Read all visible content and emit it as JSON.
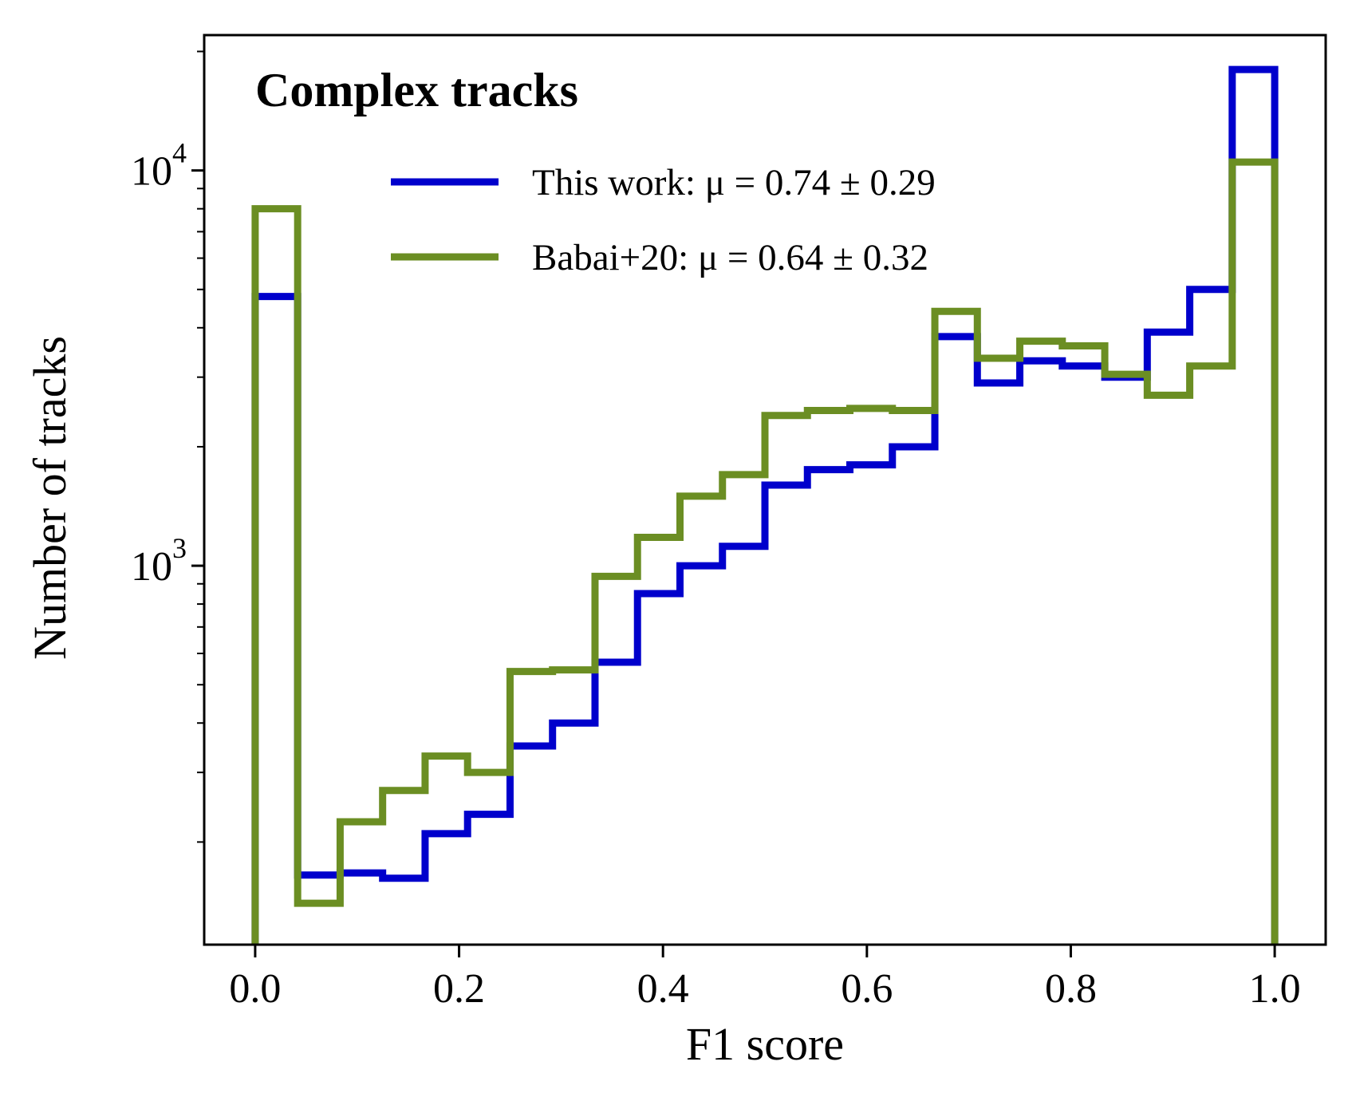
{
  "chart_data": {
    "type": "histogram-step",
    "title": "Complex tracks",
    "xlabel": "F1 score",
    "ylabel": "Number of tracks",
    "xscale": "linear",
    "yscale": "log",
    "xlim": [
      -0.05,
      1.05
    ],
    "ylim": [
      110,
      22000
    ],
    "xticks": [
      0.0,
      0.2,
      0.4,
      0.6,
      0.8,
      1.0
    ],
    "xtick_labels": [
      "0.0",
      "0.2",
      "0.4",
      "0.6",
      "0.8",
      "1.0"
    ],
    "yticks_major": [
      1000,
      10000
    ],
    "ytick_labels": [
      {
        "base": "10",
        "exp": "3"
      },
      {
        "base": "10",
        "exp": "4"
      }
    ],
    "bin_edges": [
      0.0,
      0.041667,
      0.083333,
      0.125,
      0.166667,
      0.208333,
      0.25,
      0.291667,
      0.333333,
      0.375,
      0.416667,
      0.458333,
      0.5,
      0.541667,
      0.583333,
      0.625,
      0.666667,
      0.708333,
      0.75,
      0.791667,
      0.833333,
      0.875,
      0.916667,
      0.958333,
      1.0
    ],
    "series": [
      {
        "name": "This work",
        "color": "#0000cc",
        "values": [
          4800,
          165,
          167,
          162,
          210,
          235,
          350,
          400,
          570,
          850,
          1000,
          1120,
          1600,
          1750,
          1800,
          2000,
          3800,
          2900,
          3300,
          3200,
          3000,
          3900,
          5000,
          18000
        ]
      },
      {
        "name": "Babai+20",
        "color": "#6b8e23",
        "values": [
          8000,
          140,
          225,
          270,
          330,
          300,
          540,
          545,
          940,
          1180,
          1500,
          1700,
          2400,
          2470,
          2500,
          2470,
          4400,
          3350,
          3700,
          3600,
          3050,
          2700,
          3200,
          10500
        ]
      }
    ],
    "legend": {
      "location": "upper-center",
      "entries": [
        {
          "label": "This work: μ = 0.74 ± 0.29",
          "color": "#0000cc"
        },
        {
          "label": "Babai+20: μ = 0.64 ± 0.32",
          "color": "#6b8e23"
        }
      ]
    }
  }
}
